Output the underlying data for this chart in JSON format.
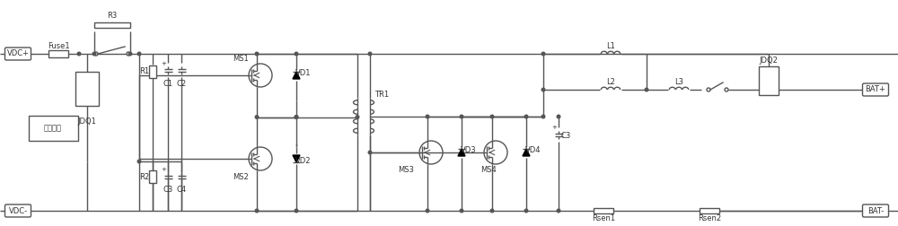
{
  "bg_color": "#ffffff",
  "line_color": "#555555",
  "line_width": 1.0,
  "text_color": "#333333",
  "font_size": 6.0,
  "fig_width": 10.0,
  "fig_height": 2.52,
  "dpi": 100,
  "labels": {
    "vdc_plus": "VDC+",
    "vdc_minus": "VDC-",
    "fuse1": "Fuse1",
    "r3": "R3",
    "jdq1": "JDQ1",
    "r1": "R1",
    "c1": "C1",
    "c2": "C2",
    "r2": "R2",
    "c3_top": "C3",
    "c4": "C4",
    "aux_power": "辅助电源",
    "ms1": "MS1",
    "ms2": "MS2",
    "ms3": "MS3",
    "ms4": "MS4",
    "vd1": "VD1",
    "vd2": "VD2",
    "vd3": "VD3",
    "vd4": "VD4",
    "tr1": "TR1",
    "l1": "L1",
    "l2": "L2",
    "l3": "L3",
    "jdq2": "JDQ2",
    "rsen1": "Rsen1",
    "rsen2": "Rsen2",
    "c3_bot": "C3",
    "bat_plus": "BAT+",
    "bat_minus": "BAT-"
  }
}
